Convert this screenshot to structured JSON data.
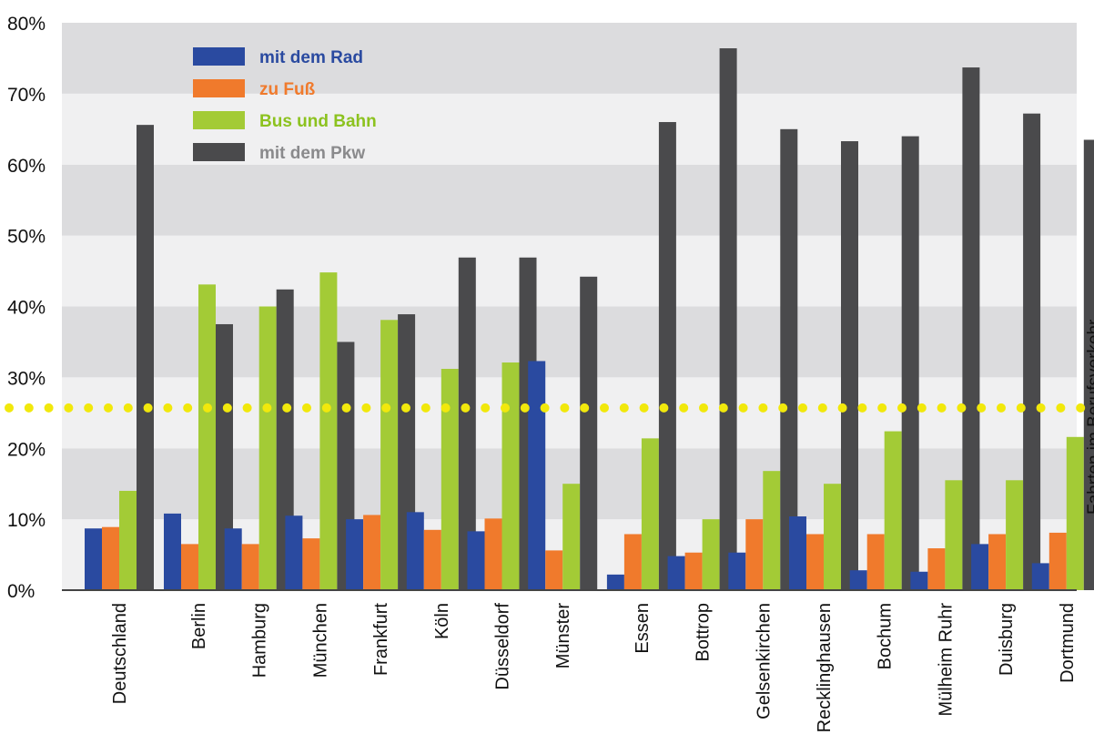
{
  "chart_data": {
    "type": "bar",
    "title": "",
    "xlabel": "",
    "ylabel": "",
    "ylim": [
      0,
      80
    ],
    "yticks": [
      0,
      10,
      20,
      30,
      40,
      50,
      60,
      70,
      80
    ],
    "ytick_labels": [
      "0%",
      "10%",
      "20%",
      "30%",
      "40%",
      "50%",
      "60%",
      "70%",
      "80%"
    ],
    "grid": "alternating horizontal bands",
    "legend_position": "top-left",
    "categories": [
      "Deutschland",
      "Berlin",
      "Hamburg",
      "München",
      "Frankfurt",
      "Köln",
      "Düsseldorf",
      "Münster",
      "Essen",
      "Bottrop",
      "Gelsenkirchen",
      "Recklinghausen",
      "Bochum",
      "Mülheim Ruhr",
      "Duisburg",
      "Dortmund"
    ],
    "series": [
      {
        "name": "mit dem Rad",
        "color": "#2a4aa0",
        "values": [
          8.7,
          10.8,
          8.7,
          10.5,
          10.0,
          11.0,
          8.3,
          32.3,
          2.2,
          4.8,
          5.3,
          10.4,
          2.8,
          2.6,
          6.5,
          3.8
        ]
      },
      {
        "name": "zu Fuß",
        "color": "#f07a2c",
        "values": [
          8.9,
          6.5,
          6.5,
          7.3,
          10.6,
          8.5,
          10.1,
          5.6,
          7.9,
          5.3,
          10.0,
          7.9,
          7.9,
          5.9,
          7.9,
          8.1
        ]
      },
      {
        "name": "Bus und Bahn",
        "color": "#a3cb36",
        "values": [
          14.0,
          43.1,
          40.0,
          44.8,
          38.1,
          31.2,
          32.1,
          15.0,
          21.4,
          10.0,
          16.8,
          15.0,
          22.4,
          15.5,
          15.5,
          21.6
        ]
      },
      {
        "name": "mit dem Pkw",
        "color": "#4a4a4c",
        "values": [
          65.6,
          37.5,
          42.4,
          35.0,
          38.9,
          46.9,
          46.9,
          44.2,
          66.0,
          76.4,
          65.0,
          63.3,
          64.0,
          73.7,
          67.2,
          63.5
        ]
      }
    ],
    "reference_line": {
      "value": 25.7,
      "color": "#f1e80c",
      "style": "dotted"
    },
    "side_label": "Fahrten im Berufsverkehr"
  },
  "colors": {
    "band_dark": "#dcdcde",
    "band_light": "#f0f0f1",
    "axis": "#444444"
  }
}
